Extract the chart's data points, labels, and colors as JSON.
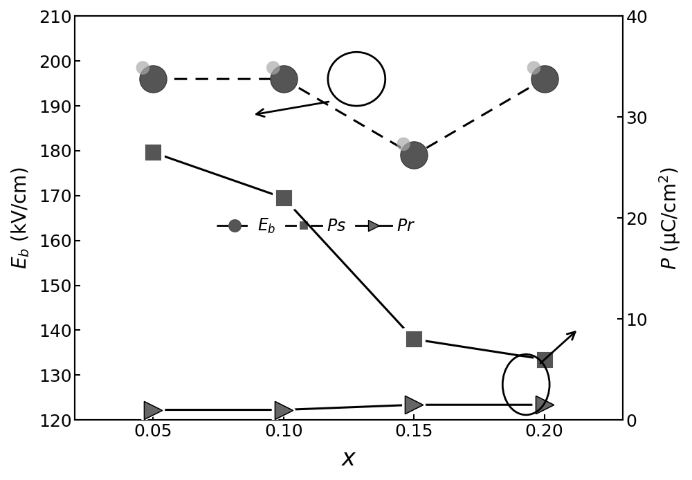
{
  "x": [
    0.05,
    0.1,
    0.15,
    0.2
  ],
  "Eb": [
    196,
    196,
    179,
    196
  ],
  "Ps": [
    26.5,
    22.0,
    8.0,
    6.0
  ],
  "Pr": [
    1.0,
    1.0,
    1.5,
    1.5
  ],
  "left_ylabel": "$E_b$ (kV/cm)",
  "right_ylabel": "$P$ (μC/cm$^2$)",
  "xlabel": "$x$",
  "left_ylim": [
    120,
    210
  ],
  "right_ylim": [
    0,
    40
  ],
  "left_yticks": [
    120,
    130,
    140,
    150,
    160,
    170,
    180,
    190,
    200,
    210
  ],
  "right_yticks": [
    0,
    10,
    20,
    30,
    40
  ],
  "xticks": [
    0.05,
    0.1,
    0.15,
    0.2
  ],
  "figsize": [
    10.0,
    6.94
  ]
}
